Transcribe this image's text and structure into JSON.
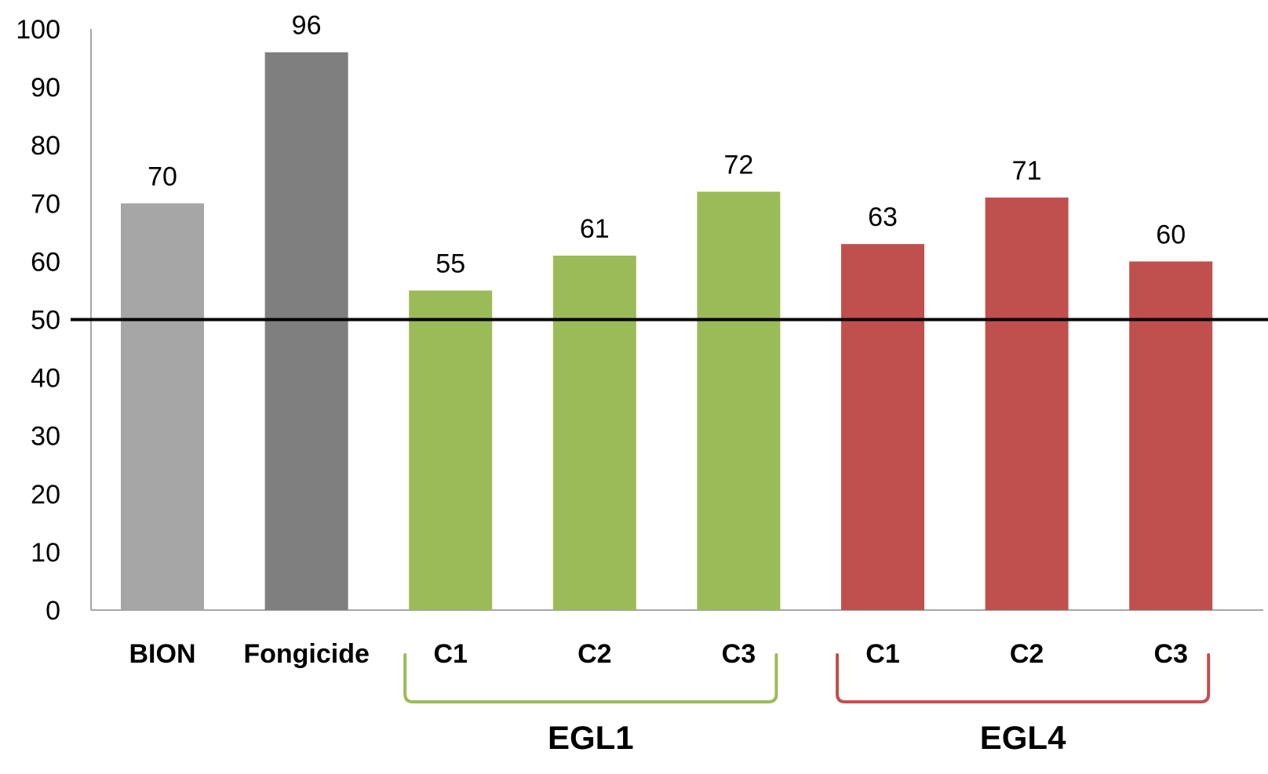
{
  "chart_data": {
    "type": "bar",
    "categories": [
      "BION",
      "Fongicide",
      "C1",
      "C2",
      "C3",
      "C1",
      "C2",
      "C3"
    ],
    "values": [
      70,
      96,
      55,
      61,
      72,
      63,
      71,
      60
    ],
    "data_labels": [
      "70",
      "96",
      "55",
      "61",
      "72",
      "63",
      "71",
      "60"
    ],
    "bar_colors": [
      "#a6a6a6",
      "#7f7f7f",
      "#9bbb59",
      "#9bbb59",
      "#9bbb59",
      "#c0504d",
      "#c0504d",
      "#c0504d"
    ],
    "ylim": [
      0,
      100
    ],
    "yticks": [
      "0",
      "10",
      "20",
      "30",
      "40",
      "50",
      "60",
      "70",
      "80",
      "90",
      "100"
    ],
    "reference_line": {
      "value": 50,
      "color": "#000000"
    },
    "groups": [
      {
        "label": "EGL1",
        "color": "#9bbb59",
        "from_index": 2,
        "to_index": 4
      },
      {
        "label": "EGL4",
        "color": "#c0504d",
        "from_index": 5,
        "to_index": 7
      }
    ],
    "grid": false,
    "legend": "none",
    "axis_color": "#a6a6a6"
  }
}
